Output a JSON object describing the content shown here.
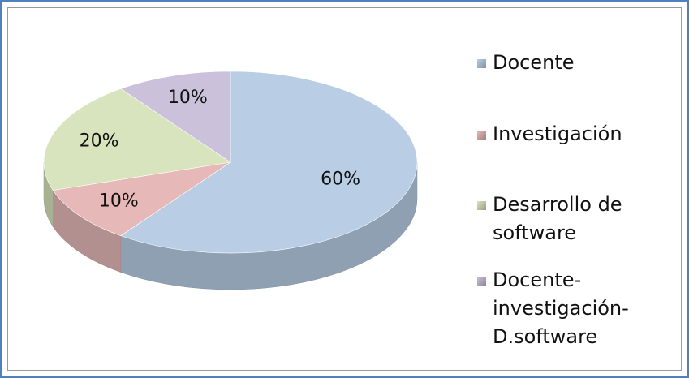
{
  "chart_data": {
    "type": "pie",
    "categories": [
      "Docente",
      "Investigación",
      "Desarrollo de software",
      "Docente-investigación-D.software"
    ],
    "values": [
      60,
      10,
      20,
      10
    ],
    "value_labels": [
      "60%",
      "10%",
      "20%",
      "10%"
    ],
    "colors": [
      "#b9cde5",
      "#e6b9b8",
      "#d7e4bd",
      "#ccc1da"
    ],
    "legend": "right"
  }
}
